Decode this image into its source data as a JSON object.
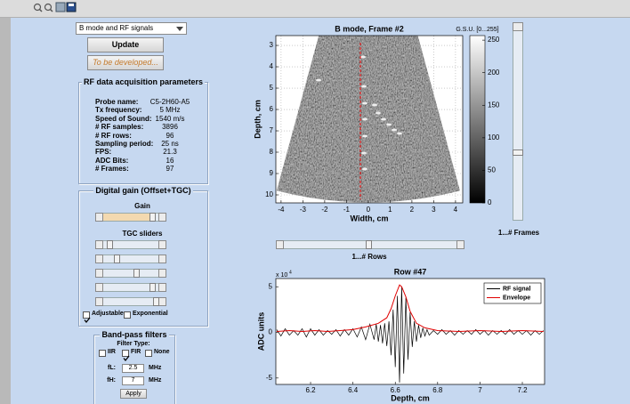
{
  "mode_select": "B mode and RF signals",
  "buttons": {
    "update": "Update",
    "todo": "To be developed..."
  },
  "rf_params": {
    "title": "RF data acquisition parameters",
    "rows": [
      [
        "Probe name:",
        "C5-2H60-A5"
      ],
      [
        "Tx frequency:",
        "5  MHz"
      ],
      [
        "Speed of Sound:",
        "1540  m/s"
      ],
      [
        "# RF samples:",
        "3896"
      ],
      [
        "# RF rows:",
        "96"
      ],
      [
        "Sampling period:",
        "25  ns"
      ],
      [
        "FPS:",
        "21.3"
      ],
      [
        "ADC Bits:",
        "16"
      ],
      [
        "# Frames:",
        "97"
      ]
    ]
  },
  "gain_panel": {
    "title": "Digital gain (Offset+TGC)",
    "gain_label": "Gain",
    "tgc_label": "TGC sliders",
    "checkboxes": [
      {
        "label": "Adjustable",
        "checked": true
      },
      {
        "label": "Exponential",
        "checked": false
      }
    ]
  },
  "filter_panel": {
    "title": "Band-pass filters",
    "filter_type_label": "Filter Type:",
    "types": [
      {
        "label": "IIR",
        "checked": false
      },
      {
        "label": "FIR",
        "checked": true
      },
      {
        "label": "None",
        "checked": false
      }
    ],
    "fields": [
      {
        "label": "fL:",
        "value": "2.5",
        "unit": "MHz"
      },
      {
        "label": "fH:",
        "value": "7",
        "unit": "MHz"
      }
    ],
    "apply": "Apply"
  },
  "frames_slider_label": "1...# Frames",
  "rows_slider_label": "1...# Rows",
  "chart_data": [
    {
      "type": "image",
      "title": "B mode, Frame #2",
      "xlabel": "Width, cm",
      "ylabel": "Depth, cm",
      "xlim": [
        -4.24,
        4.33
      ],
      "ylim": [
        10.375,
        2.54
      ],
      "xticks": [
        -4,
        -3,
        -2,
        -1,
        0,
        1,
        2,
        3,
        4
      ],
      "yticks": [
        3,
        4,
        5,
        6,
        7,
        8,
        9,
        10
      ],
      "grid": true,
      "colorbar": {
        "title": "G.S.U. [0...255]",
        "lim": [
          0,
          257
        ],
        "ticks": [
          0,
          50,
          100,
          150,
          200,
          250
        ]
      }
    },
    {
      "type": "line",
      "title": "Row #47",
      "xlabel": "Depth, cm",
      "ylabel": "ADC units",
      "y_scale_label": "x 10",
      "y_scale_exponent": "4",
      "xlim": [
        6.036,
        7.305
      ],
      "ylim": [
        -5.7,
        5.9
      ],
      "xticks": [
        6.2,
        6.4,
        6.6,
        6.8,
        7,
        7.2
      ],
      "yticks": [
        -5,
        0,
        5
      ],
      "legend": "upper right",
      "series": [
        {
          "name": "RF signal",
          "color": "#000000",
          "x": [
            6.04,
            6.06,
            6.08,
            6.1,
            6.12,
            6.14,
            6.16,
            6.18,
            6.2,
            6.22,
            6.24,
            6.26,
            6.28,
            6.3,
            6.32,
            6.34,
            6.36,
            6.38,
            6.4,
            6.42,
            6.44,
            6.46,
            6.48,
            6.5,
            6.51,
            6.52,
            6.53,
            6.54,
            6.55,
            6.56,
            6.57,
            6.58,
            6.59,
            6.6,
            6.61,
            6.62,
            6.63,
            6.64,
            6.65,
            6.66,
            6.67,
            6.68,
            6.69,
            6.7,
            6.71,
            6.72,
            6.73,
            6.74,
            6.75,
            6.76,
            6.78,
            6.8,
            6.82,
            6.84,
            6.86,
            6.88,
            6.9,
            6.92,
            6.94,
            6.96,
            6.98,
            7,
            7.02,
            7.04,
            7.06,
            7.08,
            7.1,
            7.12,
            7.14,
            7.16,
            7.18,
            7.2,
            7.22,
            7.24,
            7.26,
            7.28,
            7.3
          ],
          "values": [
            0.3,
            -0.4,
            0.4,
            -0.3,
            0.2,
            -0.3,
            0.4,
            -0.5,
            0.4,
            -0.3,
            0.3,
            -0.3,
            0.2,
            -0.2,
            0.3,
            -0.4,
            0.3,
            -0.3,
            0.4,
            -0.5,
            0.6,
            -0.8,
            0.9,
            -0.8,
            0.9,
            -1.0,
            0.8,
            -1.2,
            1.0,
            -1.5,
            1.2,
            -2.5,
            2.5,
            -3.8,
            4.0,
            -5.5,
            5.0,
            -4.5,
            3.8,
            -3.0,
            2.2,
            -1.6,
            1.2,
            -1.0,
            0.8,
            -0.6,
            0.5,
            -0.4,
            0.3,
            -0.3,
            0.2,
            -0.2,
            0.3,
            -0.2,
            0.2,
            -0.3,
            0.2,
            -0.2,
            0.2,
            -0.2,
            0.3,
            -0.2,
            0.2,
            -0.3,
            0.2,
            -0.2,
            0.2,
            -0.2,
            0.3,
            -0.2,
            0.2,
            -0.2,
            0.2,
            -0.3,
            0.2,
            -0.2,
            0.2
          ]
        },
        {
          "name": "Envelope",
          "color": "#e00000",
          "x": [
            6.04,
            6.1,
            6.16,
            6.22,
            6.28,
            6.34,
            6.4,
            6.46,
            6.52,
            6.56,
            6.58,
            6.6,
            6.62,
            6.63,
            6.65,
            6.67,
            6.7,
            6.74,
            6.8,
            6.9,
            7,
            7.1,
            7.2,
            7.3
          ],
          "values": [
            0.1,
            0.2,
            0.1,
            0.2,
            0.1,
            0.2,
            0.3,
            0.6,
            1.0,
            1.6,
            2.6,
            4.0,
            5.2,
            5.0,
            3.9,
            2.3,
            1.0,
            0.5,
            0.2,
            0.1,
            0.2,
            0.1,
            0.2,
            0.1
          ]
        }
      ]
    }
  ]
}
